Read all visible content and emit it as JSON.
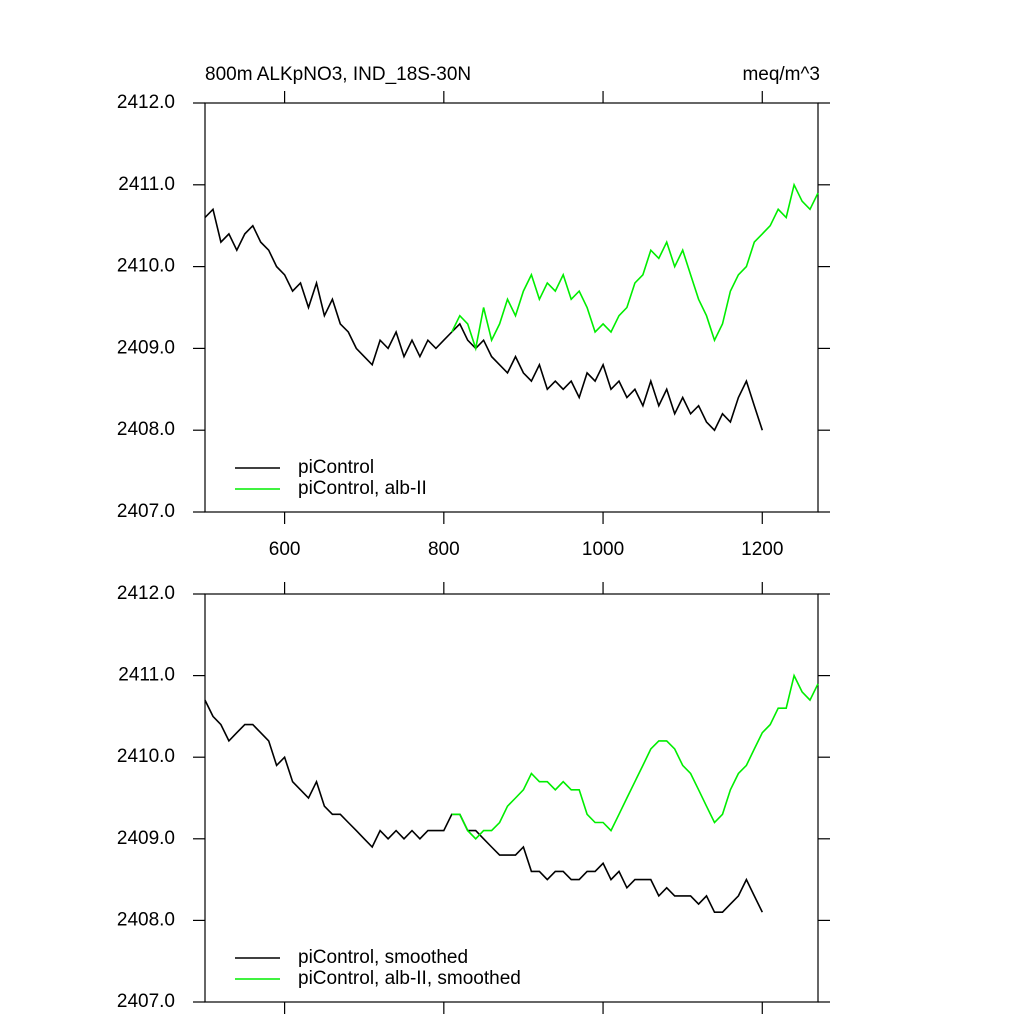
{
  "chart_data": [
    {
      "type": "line",
      "title": "800m ALKpNO3, IND_18S-30N",
      "units": "meq/m^3",
      "x": [
        500,
        510,
        520,
        530,
        540,
        550,
        560,
        570,
        580,
        590,
        600,
        610,
        620,
        630,
        640,
        650,
        660,
        670,
        680,
        690,
        700,
        710,
        720,
        730,
        740,
        750,
        760,
        770,
        780,
        790,
        800,
        810,
        820,
        830,
        840,
        850,
        860,
        870,
        880,
        890,
        900,
        910,
        920,
        930,
        940,
        950,
        960,
        970,
        980,
        990,
        1000,
        1010,
        1020,
        1030,
        1040,
        1050,
        1060,
        1070,
        1080,
        1090,
        1100,
        1110,
        1120,
        1130,
        1140,
        1150,
        1160,
        1170,
        1180,
        1190,
        1200,
        1210,
        1220,
        1230,
        1240,
        1250,
        1260,
        1270
      ],
      "xlim": [
        500,
        1270
      ],
      "xticks": [
        600,
        800,
        1000,
        1200
      ],
      "xtick_labels": true,
      "ylim": [
        2407,
        2412
      ],
      "yticks": [
        {
          "value": 2407,
          "label": "2407.0"
        },
        {
          "value": 2408,
          "label": "2408.0"
        },
        {
          "value": 2409,
          "label": "2409.0"
        },
        {
          "value": 2410,
          "label": "2410.0"
        },
        {
          "value": 2411,
          "label": "2411.0"
        },
        {
          "value": 2412,
          "label": "2412.0"
        }
      ],
      "series": [
        {
          "name": "piControl",
          "color": "#000000",
          "values": [
            2410.6,
            2410.7,
            2410.3,
            2410.4,
            2410.2,
            2410.4,
            2410.5,
            2410.3,
            2410.2,
            2410.0,
            2409.9,
            2409.7,
            2409.8,
            2409.5,
            2409.8,
            2409.4,
            2409.6,
            2409.3,
            2409.2,
            2409.0,
            2408.9,
            2408.8,
            2409.1,
            2409.0,
            2409.2,
            2408.9,
            2409.1,
            2408.9,
            2409.1,
            2409.0,
            2409.1,
            2409.2,
            2409.3,
            2409.1,
            2409.0,
            2409.1,
            2408.9,
            2408.8,
            2408.7,
            2408.9,
            2408.7,
            2408.6,
            2408.8,
            2408.5,
            2408.6,
            2408.5,
            2408.6,
            2408.4,
            2408.7,
            2408.6,
            2408.8,
            2408.5,
            2408.6,
            2408.4,
            2408.5,
            2408.3,
            2408.6,
            2408.3,
            2408.5,
            2408.2,
            2408.4,
            2408.2,
            2408.3,
            2408.1,
            2408.0,
            2408.2,
            2408.1,
            2408.4,
            2408.6,
            2408.3,
            2408.0,
            null,
            null,
            null,
            null,
            null,
            null,
            null
          ]
        },
        {
          "name": "piControl, alb-II",
          "color": "#00ee00",
          "values": [
            null,
            null,
            null,
            null,
            null,
            null,
            null,
            null,
            null,
            null,
            null,
            null,
            null,
            null,
            null,
            null,
            null,
            null,
            null,
            null,
            null,
            null,
            null,
            null,
            null,
            null,
            null,
            null,
            null,
            null,
            null,
            2409.2,
            2409.4,
            2409.3,
            2409.0,
            2409.5,
            2409.1,
            2409.3,
            2409.6,
            2409.4,
            2409.7,
            2409.9,
            2409.6,
            2409.8,
            2409.7,
            2409.9,
            2409.6,
            2409.7,
            2409.5,
            2409.2,
            2409.3,
            2409.2,
            2409.4,
            2409.5,
            2409.8,
            2409.9,
            2410.2,
            2410.1,
            2410.3,
            2410.0,
            2410.2,
            2409.9,
            2409.6,
            2409.4,
            2409.1,
            2409.3,
            2409.7,
            2409.9,
            2410.0,
            2410.3,
            2410.4,
            2410.5,
            2410.7,
            2410.6,
            2411.0,
            2410.8,
            2410.7,
            2410.9
          ]
        }
      ]
    },
    {
      "type": "line",
      "x": [
        500,
        510,
        520,
        530,
        540,
        550,
        560,
        570,
        580,
        590,
        600,
        610,
        620,
        630,
        640,
        650,
        660,
        670,
        680,
        690,
        700,
        710,
        720,
        730,
        740,
        750,
        760,
        770,
        780,
        790,
        800,
        810,
        820,
        830,
        840,
        850,
        860,
        870,
        880,
        890,
        900,
        910,
        920,
        930,
        940,
        950,
        960,
        970,
        980,
        990,
        1000,
        1010,
        1020,
        1030,
        1040,
        1050,
        1060,
        1070,
        1080,
        1090,
        1100,
        1110,
        1120,
        1130,
        1140,
        1150,
        1160,
        1170,
        1180,
        1190,
        1200,
        1210,
        1220,
        1230,
        1240,
        1250,
        1260,
        1270
      ],
      "xlim": [
        500,
        1270
      ],
      "xticks": [
        600,
        800,
        1000,
        1200
      ],
      "xtick_labels": false,
      "ylim": [
        2407,
        2412
      ],
      "yticks": [
        {
          "value": 2407,
          "label": "2407.0"
        },
        {
          "value": 2408,
          "label": "2408.0"
        },
        {
          "value": 2409,
          "label": "2409.0"
        },
        {
          "value": 2410,
          "label": "2410.0"
        },
        {
          "value": 2411,
          "label": "2411.0"
        },
        {
          "value": 2412,
          "label": "2412.0"
        }
      ],
      "series": [
        {
          "name": "piControl, smoothed",
          "color": "#000000",
          "values": [
            2410.7,
            2410.5,
            2410.4,
            2410.2,
            2410.3,
            2410.4,
            2410.4,
            2410.3,
            2410.2,
            2409.9,
            2410.0,
            2409.7,
            2409.6,
            2409.5,
            2409.7,
            2409.4,
            2409.3,
            2409.3,
            2409.2,
            2409.1,
            2409.0,
            2408.9,
            2409.1,
            2409.0,
            2409.1,
            2409.0,
            2409.1,
            2409.0,
            2409.1,
            2409.1,
            2409.1,
            2409.3,
            2409.3,
            2409.1,
            2409.1,
            2409.0,
            2408.9,
            2408.8,
            2408.8,
            2408.8,
            2408.9,
            2408.6,
            2408.6,
            2408.5,
            2408.6,
            2408.6,
            2408.5,
            2408.5,
            2408.6,
            2408.6,
            2408.7,
            2408.5,
            2408.6,
            2408.4,
            2408.5,
            2408.5,
            2408.5,
            2408.3,
            2408.4,
            2408.3,
            2408.3,
            2408.3,
            2408.2,
            2408.3,
            2408.1,
            2408.1,
            2408.2,
            2408.3,
            2408.5,
            2408.3,
            2408.1,
            null,
            null,
            null,
            null,
            null,
            null,
            null
          ]
        },
        {
          "name": "piControl, alb-II, smoothed",
          "color": "#00ee00",
          "values": [
            null,
            null,
            null,
            null,
            null,
            null,
            null,
            null,
            null,
            null,
            null,
            null,
            null,
            null,
            null,
            null,
            null,
            null,
            null,
            null,
            null,
            null,
            null,
            null,
            null,
            null,
            null,
            null,
            null,
            null,
            null,
            2409.3,
            2409.3,
            2409.1,
            2409.0,
            2409.1,
            2409.1,
            2409.2,
            2409.4,
            2409.5,
            2409.6,
            2409.8,
            2409.7,
            2409.7,
            2409.6,
            2409.7,
            2409.6,
            2409.6,
            2409.3,
            2409.2,
            2409.2,
            2409.1,
            2409.3,
            2409.5,
            2409.7,
            2409.9,
            2410.1,
            2410.2,
            2410.2,
            2410.1,
            2409.9,
            2409.8,
            2409.6,
            2409.4,
            2409.2,
            2409.3,
            2409.6,
            2409.8,
            2409.9,
            2410.1,
            2410.3,
            2410.4,
            2410.6,
            2410.6,
            2411.0,
            2410.8,
            2410.7,
            2410.9
          ]
        }
      ]
    }
  ]
}
